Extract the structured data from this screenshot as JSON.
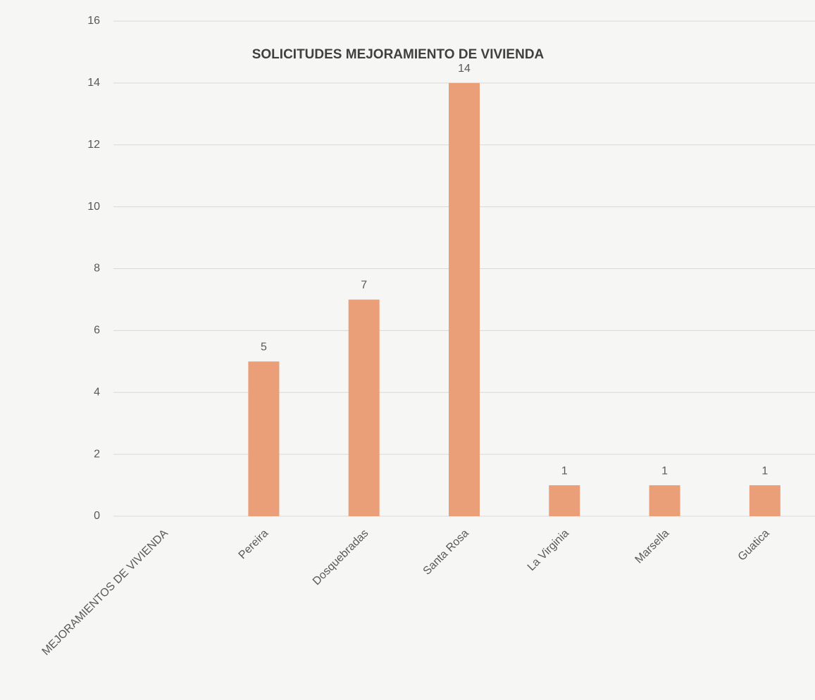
{
  "chart_data": {
    "type": "bar",
    "title": "SOLICITUDES MEJORAMIENTO DE VIVIENDA",
    "categories": [
      "MEJORAMIENTOS DE VIVIENDA",
      "Pereira",
      "Dosquebradas",
      "Santa Rosa",
      "La Virginia",
      "Marsella",
      "Guatica"
    ],
    "values": [
      null,
      5,
      7,
      14,
      1,
      1,
      1
    ],
    "color": "#eb9f78",
    "ylim": [
      0,
      16
    ],
    "yticks": [
      0,
      2,
      4,
      6,
      8,
      10,
      12,
      14,
      16
    ],
    "grid": true,
    "data_labels": true
  }
}
